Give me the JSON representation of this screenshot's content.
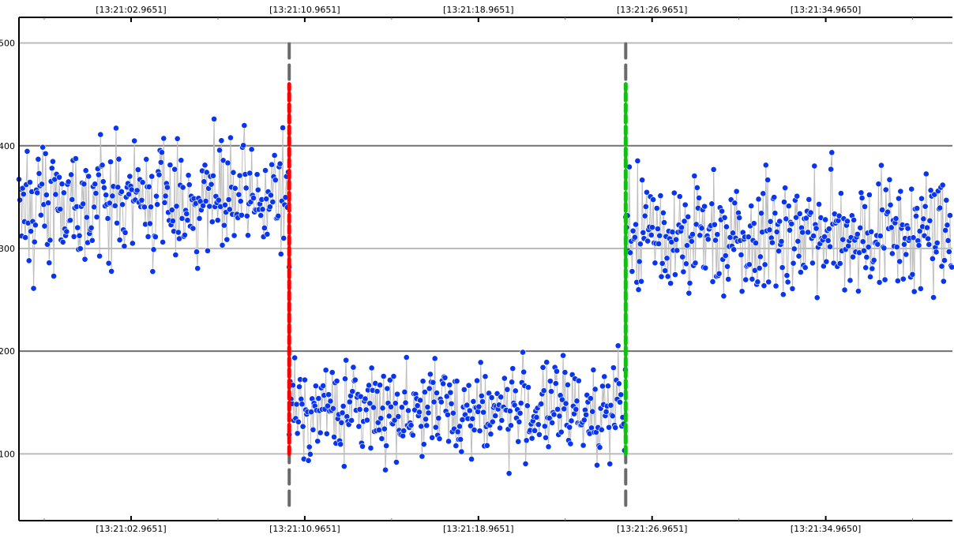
{
  "chart_data": {
    "type": "line",
    "title": "",
    "xlabel": "",
    "ylabel": "",
    "ylim": [
      35,
      525
    ],
    "x_axis": {
      "tick_labels": [
        "[13:21:02.9651]",
        "[13:21:10.9651]",
        "[13:21:18.9651]",
        "[13:21:26.9651]",
        "[13:21:34.9650]"
      ],
      "tick_positions_s": [
        2.9651,
        10.9651,
        18.9651,
        26.9651,
        34.965
      ],
      "range_s": [
        -2.2,
        40.8
      ]
    },
    "y_axis": {
      "ticks": [
        100,
        200,
        300,
        400,
        500
      ]
    },
    "grid": {
      "horizontal": true,
      "vertical": false
    },
    "colors": {
      "points": "#0a35ee",
      "connector": "#bdbdbd",
      "grid_light": "#bbbbbb",
      "grid_dark": "#707070",
      "marker_gray": "#6a6a6a",
      "marker_red": "#ff0000",
      "marker_green": "#10c010"
    },
    "series": [
      {
        "t_start": -2.2,
        "t_end": 10.25,
        "mean": 347,
        "spread": 48
      },
      {
        "t_start": 10.25,
        "t_end": 25.75,
        "mean": 143,
        "spread": 38
      },
      {
        "t_start": 25.75,
        "t_end": 40.8,
        "mean": 315,
        "spread": 50
      }
    ],
    "annotations": [
      {
        "type": "vline",
        "x": 10.25,
        "y_range": [
          50,
          500
        ],
        "color": "gray",
        "style": "dashed"
      },
      {
        "type": "vline",
        "x": 10.25,
        "y_range": [
          100,
          460
        ],
        "color": "red",
        "style": "dashed"
      },
      {
        "type": "vline",
        "x": 25.75,
        "y_range": [
          50,
          500
        ],
        "color": "gray",
        "style": "dashed"
      },
      {
        "type": "vline",
        "x": 25.75,
        "y_range": [
          100,
          460
        ],
        "color": "green",
        "style": "dashed"
      }
    ]
  }
}
